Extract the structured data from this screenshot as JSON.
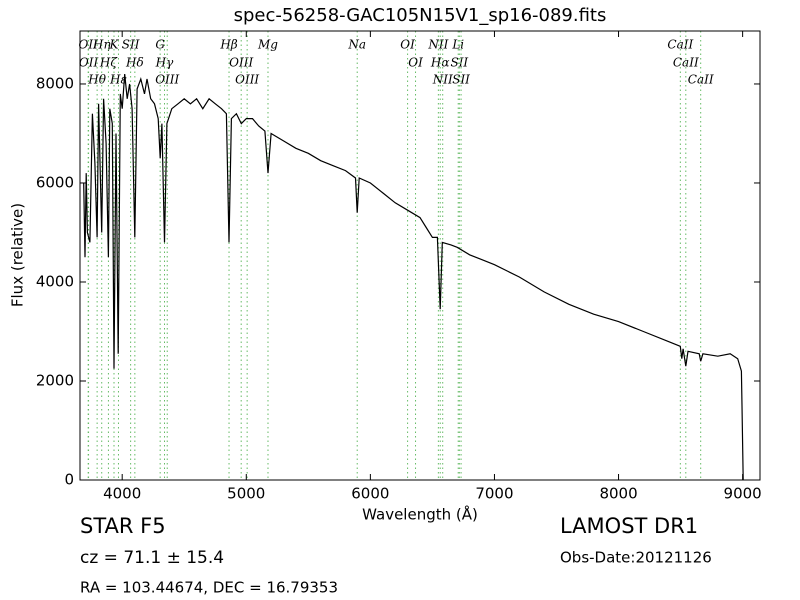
{
  "chart_data": {
    "type": "line",
    "title": "spec-56258-GAC105N15V1_sp16-089.fits",
    "xlabel": "Wavelength (Å)",
    "ylabel": "Flux (relative)",
    "xlim": [
      3660,
      9140
    ],
    "ylim": [
      0,
      9070
    ],
    "xticks": [
      4000,
      5000,
      6000,
      7000,
      8000,
      9000
    ],
    "yticks": [
      0,
      2000,
      4000,
      6000,
      8000
    ],
    "color": "#000000",
    "line_color": "#66bb66",
    "x": [
      3690,
      3700,
      3710,
      3720,
      3740,
      3760,
      3780,
      3798,
      3810,
      3835,
      3850,
      3870,
      3889,
      3900,
      3920,
      3934,
      3950,
      3968,
      3985,
      4000,
      4020,
      4040,
      4060,
      4080,
      4102,
      4120,
      4150,
      4180,
      4200,
      4230,
      4260,
      4290,
      4306,
      4320,
      4341,
      4360,
      4400,
      4450,
      4500,
      4550,
      4600,
      4650,
      4700,
      4750,
      4800,
      4840,
      4861,
      4880,
      4920,
      4960,
      5000,
      5050,
      5100,
      5150,
      5175,
      5200,
      5300,
      5400,
      5500,
      5600,
      5700,
      5800,
      5880,
      5894,
      5910,
      6000,
      6100,
      6200,
      6300,
      6400,
      6450,
      6500,
      6540,
      6563,
      6580,
      6650,
      6700,
      6800,
      6900,
      7000,
      7200,
      7400,
      7600,
      7800,
      8000,
      8200,
      8400,
      8498,
      8510,
      8520,
      8542,
      8560,
      8650,
      8662,
      8680,
      8800,
      8900,
      8960,
      8990,
      8995,
      9005
    ],
    "values": [
      6000,
      4500,
      6200,
      5000,
      4800,
      7400,
      6400,
      4900,
      7600,
      5000,
      7700,
      6800,
      4500,
      7500,
      7200,
      2250,
      7000,
      2550,
      7800,
      7500,
      8200,
      7700,
      8000,
      7500,
      4900,
      7900,
      8100,
      7800,
      8100,
      7700,
      7600,
      7300,
      6500,
      7200,
      4800,
      7200,
      7500,
      7600,
      7700,
      7600,
      7700,
      7500,
      7700,
      7600,
      7500,
      7400,
      4800,
      7300,
      7400,
      7200,
      7300,
      7300,
      7150,
      7050,
      6200,
      7000,
      6850,
      6700,
      6600,
      6450,
      6350,
      6250,
      6100,
      5400,
      6100,
      6000,
      5800,
      5600,
      5450,
      5300,
      5100,
      4900,
      4900,
      3450,
      4800,
      4750,
      4700,
      4550,
      4450,
      4350,
      4100,
      3800,
      3550,
      3350,
      3200,
      3000,
      2800,
      2700,
      2450,
      2650,
      2300,
      2600,
      2550,
      2400,
      2550,
      2500,
      2550,
      2450,
      2200,
      1500,
      0
    ],
    "lines": [
      {
        "label": "OII",
        "x": 3726
      },
      {
        "label": "OII",
        "x": 3729
      },
      {
        "label": "Hθ",
        "x": 3798
      },
      {
        "label": "Hη",
        "x": 3835
      },
      {
        "label": "Hζ",
        "x": 3889
      },
      {
        "label": "K",
        "x": 3934
      },
      {
        "label": "Hε",
        "x": 3970
      },
      {
        "label": "SII",
        "x": 4068
      },
      {
        "label": "Hδ",
        "x": 4102
      },
      {
        "label": "G",
        "x": 4306
      },
      {
        "label": "Hγ",
        "x": 4341
      },
      {
        "label": "OIII",
        "x": 4363
      },
      {
        "label": "Hβ",
        "x": 4861
      },
      {
        "label": "OIII",
        "x": 4959
      },
      {
        "label": "OIII",
        "x": 5007
      },
      {
        "label": "Mg",
        "x": 5175
      },
      {
        "label": "Na",
        "x": 5894
      },
      {
        "label": "OI",
        "x": 6300
      },
      {
        "label": "OI",
        "x": 6364
      },
      {
        "label": "NII",
        "x": 6548
      },
      {
        "label": "Hα",
        "x": 6563
      },
      {
        "label": "NII",
        "x": 6583
      },
      {
        "label": "Li",
        "x": 6708
      },
      {
        "label": "SII",
        "x": 6717
      },
      {
        "label": "SII",
        "x": 6731
      },
      {
        "label": "CaII",
        "x": 8498
      },
      {
        "label": "CaII",
        "x": 8542
      },
      {
        "label": "CaII",
        "x": 8662
      }
    ],
    "info": {
      "object": "STAR   F5",
      "cz": "cz = 71.1  ± 15.4",
      "coords": "RA = 103.44674, DEC = 16.79353",
      "survey": "LAMOST DR1",
      "date": "Obs-Date:20121126"
    }
  }
}
